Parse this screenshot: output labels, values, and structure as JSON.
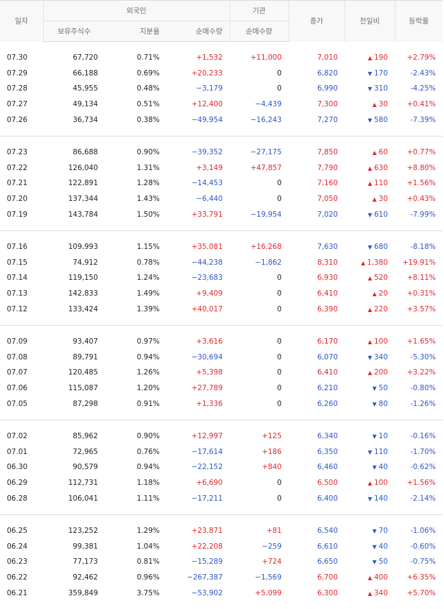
{
  "headers": {
    "date": "일자",
    "foreign": "외국인",
    "institution": "기관",
    "holdings": "보유주식수",
    "ratio": "지분율",
    "net_foreign": "순매수량",
    "net_inst": "순매수량",
    "close": "종가",
    "change": "전일비",
    "rate": "등락률"
  },
  "groups": [
    [
      {
        "date": "07.30",
        "holdings": "67,720",
        "ratio": "0.71%",
        "foreign_net": "+1,532",
        "inst_net": "+11,000",
        "close": "7,010",
        "change": "190",
        "dir": "up",
        "rate": "+2.79%"
      },
      {
        "date": "07.29",
        "holdings": "66,188",
        "ratio": "0.69%",
        "foreign_net": "+20,233",
        "inst_net": "0",
        "close": "6,820",
        "change": "170",
        "dir": "dn",
        "rate": "-2.43%"
      },
      {
        "date": "07.28",
        "holdings": "45,955",
        "ratio": "0.48%",
        "foreign_net": "−3,179",
        "inst_net": "0",
        "close": "6,990",
        "change": "310",
        "dir": "dn",
        "rate": "-4.25%"
      },
      {
        "date": "07.27",
        "holdings": "49,134",
        "ratio": "0.51%",
        "foreign_net": "+12,400",
        "inst_net": "−4,439",
        "close": "7,300",
        "change": "30",
        "dir": "up",
        "rate": "+0.41%"
      },
      {
        "date": "07.26",
        "holdings": "36,734",
        "ratio": "0.38%",
        "foreign_net": "−49,954",
        "inst_net": "−16,243",
        "close": "7,270",
        "change": "580",
        "dir": "dn",
        "rate": "-7.39%"
      }
    ],
    [
      {
        "date": "07.23",
        "holdings": "86,688",
        "ratio": "0.90%",
        "foreign_net": "−39,352",
        "inst_net": "−27,175",
        "close": "7,850",
        "change": "60",
        "dir": "up",
        "rate": "+0.77%"
      },
      {
        "date": "07.22",
        "holdings": "126,040",
        "ratio": "1.31%",
        "foreign_net": "+3,149",
        "inst_net": "+47,857",
        "close": "7,790",
        "change": "630",
        "dir": "up",
        "rate": "+8.80%"
      },
      {
        "date": "07.21",
        "holdings": "122,891",
        "ratio": "1.28%",
        "foreign_net": "−14,453",
        "inst_net": "0",
        "close": "7,160",
        "change": "110",
        "dir": "up",
        "rate": "+1.56%"
      },
      {
        "date": "07.20",
        "holdings": "137,344",
        "ratio": "1.43%",
        "foreign_net": "−6,440",
        "inst_net": "0",
        "close": "7,050",
        "change": "30",
        "dir": "up",
        "rate": "+0.43%"
      },
      {
        "date": "07.19",
        "holdings": "143,784",
        "ratio": "1.50%",
        "foreign_net": "+33,791",
        "inst_net": "−19,954",
        "close": "7,020",
        "change": "610",
        "dir": "dn",
        "rate": "-7.99%"
      }
    ],
    [
      {
        "date": "07.16",
        "holdings": "109,993",
        "ratio": "1.15%",
        "foreign_net": "+35,081",
        "inst_net": "+16,268",
        "close": "7,630",
        "change": "680",
        "dir": "dn",
        "rate": "-8.18%"
      },
      {
        "date": "07.15",
        "holdings": "74,912",
        "ratio": "0.78%",
        "foreign_net": "−44,238",
        "inst_net": "−1,862",
        "close": "8,310",
        "change": "1,380",
        "dir": "up",
        "rate": "+19.91%"
      },
      {
        "date": "07.14",
        "holdings": "119,150",
        "ratio": "1.24%",
        "foreign_net": "−23,683",
        "inst_net": "0",
        "close": "6,930",
        "change": "520",
        "dir": "up",
        "rate": "+8.11%"
      },
      {
        "date": "07.13",
        "holdings": "142,833",
        "ratio": "1.49%",
        "foreign_net": "+9,409",
        "inst_net": "0",
        "close": "6,410",
        "change": "20",
        "dir": "up",
        "rate": "+0.31%"
      },
      {
        "date": "07.12",
        "holdings": "133,424",
        "ratio": "1.39%",
        "foreign_net": "+40,017",
        "inst_net": "0",
        "close": "6,390",
        "change": "220",
        "dir": "up",
        "rate": "+3.57%"
      }
    ],
    [
      {
        "date": "07.09",
        "holdings": "93,407",
        "ratio": "0.97%",
        "foreign_net": "+3,616",
        "inst_net": "0",
        "close": "6,170",
        "change": "100",
        "dir": "up",
        "rate": "+1.65%"
      },
      {
        "date": "07.08",
        "holdings": "89,791",
        "ratio": "0.94%",
        "foreign_net": "−30,694",
        "inst_net": "0",
        "close": "6,070",
        "change": "340",
        "dir": "dn",
        "rate": "-5.30%"
      },
      {
        "date": "07.07",
        "holdings": "120,485",
        "ratio": "1.26%",
        "foreign_net": "+5,398",
        "inst_net": "0",
        "close": "6,410",
        "change": "200",
        "dir": "up",
        "rate": "+3.22%"
      },
      {
        "date": "07.06",
        "holdings": "115,087",
        "ratio": "1.20%",
        "foreign_net": "+27,789",
        "inst_net": "0",
        "close": "6,210",
        "change": "50",
        "dir": "dn",
        "rate": "-0.80%"
      },
      {
        "date": "07.05",
        "holdings": "87,298",
        "ratio": "0.91%",
        "foreign_net": "+1,336",
        "inst_net": "0",
        "close": "6,260",
        "change": "80",
        "dir": "dn",
        "rate": "-1.26%"
      }
    ],
    [
      {
        "date": "07.02",
        "holdings": "85,962",
        "ratio": "0.90%",
        "foreign_net": "+12,997",
        "inst_net": "+125",
        "close": "6,340",
        "change": "10",
        "dir": "dn",
        "rate": "-0.16%"
      },
      {
        "date": "07.01",
        "holdings": "72,965",
        "ratio": "0.76%",
        "foreign_net": "−17,614",
        "inst_net": "+186",
        "close": "6,350",
        "change": "110",
        "dir": "dn",
        "rate": "-1.70%"
      },
      {
        "date": "06.30",
        "holdings": "90,579",
        "ratio": "0.94%",
        "foreign_net": "−22,152",
        "inst_net": "+840",
        "close": "6,460",
        "change": "40",
        "dir": "dn",
        "rate": "-0.62%"
      },
      {
        "date": "06.29",
        "holdings": "112,731",
        "ratio": "1.18%",
        "foreign_net": "+6,690",
        "inst_net": "0",
        "close": "6,500",
        "change": "100",
        "dir": "up",
        "rate": "+1.56%"
      },
      {
        "date": "06.28",
        "holdings": "106,041",
        "ratio": "1.11%",
        "foreign_net": "−17,211",
        "inst_net": "0",
        "close": "6,400",
        "change": "140",
        "dir": "dn",
        "rate": "-2.14%"
      }
    ],
    [
      {
        "date": "06.25",
        "holdings": "123,252",
        "ratio": "1.29%",
        "foreign_net": "+23,871",
        "inst_net": "+81",
        "close": "6,540",
        "change": "70",
        "dir": "dn",
        "rate": "-1.06%"
      },
      {
        "date": "06.24",
        "holdings": "99,381",
        "ratio": "1.04%",
        "foreign_net": "+22,208",
        "inst_net": "−259",
        "close": "6,610",
        "change": "40",
        "dir": "dn",
        "rate": "-0.60%"
      },
      {
        "date": "06.23",
        "holdings": "77,173",
        "ratio": "0.81%",
        "foreign_net": "−15,289",
        "inst_net": "+724",
        "close": "6,650",
        "change": "50",
        "dir": "dn",
        "rate": "-0.75%"
      },
      {
        "date": "06.22",
        "holdings": "92,462",
        "ratio": "0.96%",
        "foreign_net": "−267,387",
        "inst_net": "−1,569",
        "close": "6,700",
        "change": "400",
        "dir": "up",
        "rate": "+6.35%"
      },
      {
        "date": "06.21",
        "holdings": "359,849",
        "ratio": "3.75%",
        "foreign_net": "−53,902",
        "inst_net": "+5,099",
        "close": "6,300",
        "change": "340",
        "dir": "up",
        "rate": "+5.70%"
      }
    ]
  ],
  "colors": {
    "up": "#e0262a",
    "down": "#2a56c6"
  },
  "icons": {
    "up": "up-triangle-icon",
    "down": "down-triangle-icon"
  }
}
